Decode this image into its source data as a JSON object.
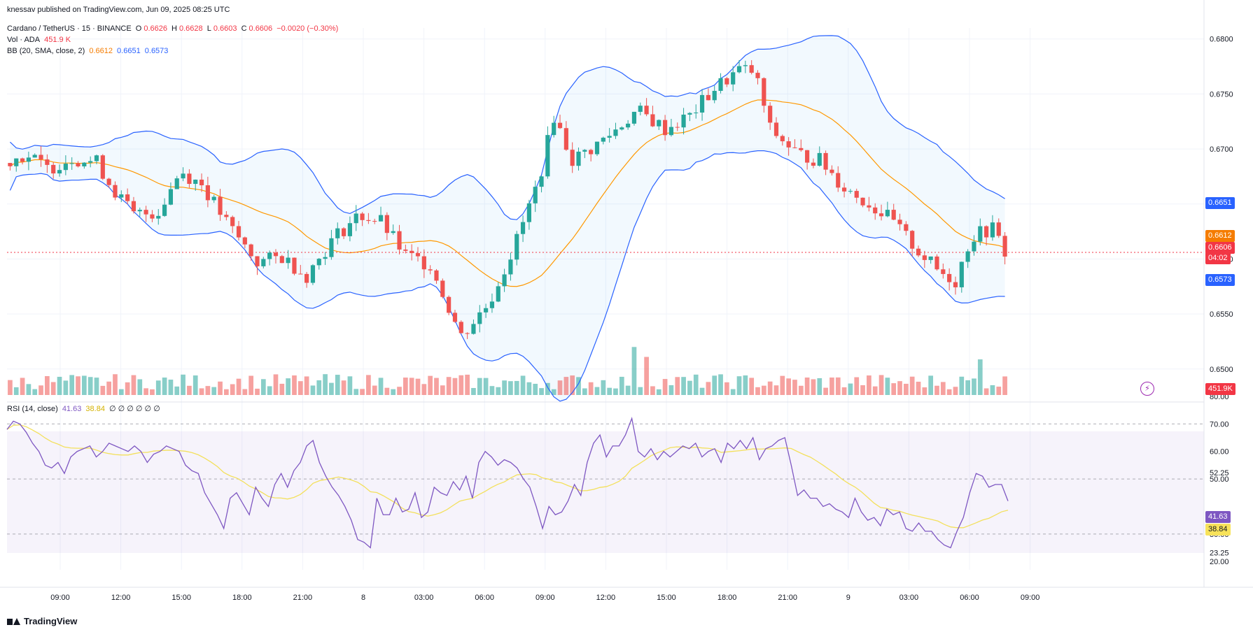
{
  "header": {
    "publisher": "knessav published on TradingView.com, Jun 09, 2025 08:25 UTC"
  },
  "legend": {
    "symbol": "Cardano / TetherUS · 15 · BINANCE",
    "o_label": "O",
    "o_value": "0.6626",
    "h_label": "H",
    "h_value": "0.6628",
    "l_label": "L",
    "l_value": "0.6603",
    "c_label": "C",
    "c_value": "0.6606",
    "change": "−0.0020 (−0.30%)",
    "vol_label": "Vol · ADA",
    "vol_value": "451.9 K",
    "bb_label": "BB (20, SMA, close, 2)",
    "bb_basis": "0.6612",
    "bb_upper": "0.6651",
    "bb_lower": "0.6573",
    "rsi_label": "RSI (14, close)",
    "rsi_value": "41.63",
    "rsi_ma": "38.84",
    "rsi_extra": "∅ ∅ ∅ ∅ ∅ ∅"
  },
  "footer": {
    "brand": "TradingView"
  },
  "colors": {
    "up": "#26a69a",
    "down": "#ef5350",
    "bb_basis": "#ff9800",
    "bb_band": "#2962ff",
    "rsi_line": "#7e57c2",
    "rsi_ma": "#f3e05c",
    "price_line": "#f23645"
  },
  "chart_data": {
    "type": "candlestick",
    "price_axis": {
      "ylim": [
        0.647,
        0.681
      ],
      "ticks": [
        "0.6800",
        "0.6750",
        "0.6700",
        "0.6650",
        "0.6600",
        "0.6550",
        "0.6500"
      ]
    },
    "rsi_axis": {
      "ylim": [
        17,
        80
      ],
      "ticks": [
        "80.00",
        "70.00",
        "60.00",
        "52.25",
        "50.00",
        "30.00",
        "23.25",
        "20.00"
      ],
      "bands": [
        30,
        70
      ]
    },
    "time_ticks": [
      "09:00",
      "12:00",
      "15:00",
      "18:00",
      "21:00",
      "8",
      "03:00",
      "06:00",
      "09:00",
      "12:00",
      "15:00",
      "18:00",
      "21:00",
      "9",
      "03:00",
      "06:00",
      "09:00"
    ],
    "price_labels": {
      "bb_upper": "0.6651",
      "bb_basis": "0.6612",
      "last": "0.6606",
      "countdown": "04:02",
      "bb_lower": "0.6573",
      "volume": "451.9K",
      "rsi": "41.63",
      "rsi_ma": "38.84"
    },
    "candles": [],
    "volume": [],
    "bb_upper": [],
    "bb_basis": [],
    "bb_lower": [],
    "rsi": [
      68,
      71,
      70,
      67,
      63,
      60,
      55,
      54,
      56,
      52,
      58,
      60,
      61,
      62,
      58,
      60,
      63,
      62,
      61,
      60,
      62,
      60,
      56,
      59,
      60,
      62,
      61,
      60,
      55,
      53,
      52,
      45,
      41,
      37,
      32,
      43,
      45,
      41,
      37,
      47,
      43,
      40,
      48,
      52,
      47,
      53,
      56,
      62,
      64,
      56,
      51,
      47,
      44,
      40,
      35,
      28,
      27,
      25,
      43,
      37,
      37,
      43,
      38,
      39,
      45,
      36,
      38,
      47,
      45,
      44,
      49,
      46,
      51,
      43,
      56,
      60,
      58,
      55,
      57,
      56,
      54,
      50,
      47,
      40,
      32,
      40,
      37,
      38,
      42,
      48,
      44,
      56,
      63,
      66,
      58,
      62,
      62,
      66,
      72,
      60,
      58,
      61,
      57,
      60,
      58,
      60,
      62,
      61,
      63,
      58,
      60,
      61,
      56,
      63,
      61,
      64,
      61,
      65,
      57,
      61,
      62,
      64,
      65,
      55,
      44,
      46,
      43,
      43,
      40,
      41,
      39,
      38,
      36,
      43,
      38,
      35,
      36,
      33,
      39,
      37,
      38,
      32,
      31,
      34,
      31,
      31,
      28,
      26,
      25,
      31,
      36,
      45,
      52,
      51,
      47,
      48,
      48,
      42
    ],
    "rsi_ma": []
  }
}
